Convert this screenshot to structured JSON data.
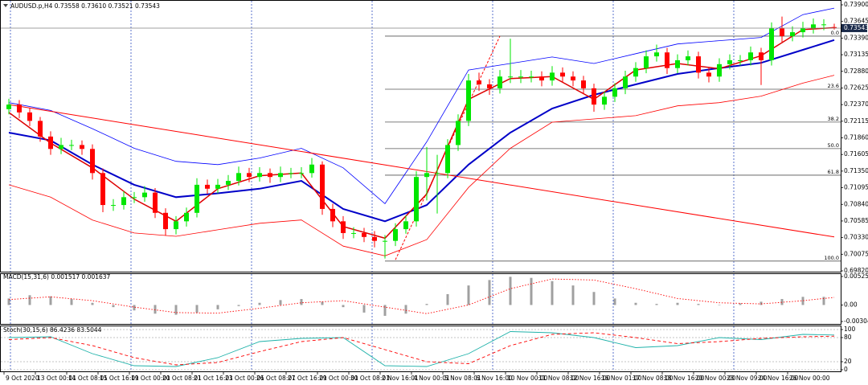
{
  "chart_data": [
    {
      "type": "candlestick",
      "title": "AUDUSD.p,H4  0.73558 0.73610 0.73521 0.73543",
      "up_color": "#00e600",
      "down_color": "#ff0000",
      "open": [
        0.723,
        0.7237,
        0.7225,
        0.7212,
        0.7188,
        0.7169,
        0.7175,
        0.7175,
        0.7169,
        0.7132,
        0.7083,
        0.7083,
        0.7095,
        0.7095,
        0.7102,
        0.7071,
        0.7046,
        0.7058,
        0.7071,
        0.7114,
        0.7108,
        0.7114,
        0.712,
        0.7132,
        0.7126,
        0.7132,
        0.7126,
        0.7132,
        0.7132,
        0.7132,
        0.7145,
        0.7077,
        0.7058,
        0.704,
        0.704,
        0.7034,
        0.7028,
        0.7028,
        0.7046,
        0.7058,
        0.7126,
        0.7132,
        0.7132,
        0.7175,
        0.7212,
        0.7274,
        0.7268,
        0.7262,
        0.728,
        0.728,
        0.728,
        0.728,
        0.7274,
        0.7286,
        0.728,
        0.7274,
        0.7262,
        0.7237,
        0.7249,
        0.7262,
        0.728,
        0.7293,
        0.7311,
        0.7317,
        0.7293,
        0.7305,
        0.7311,
        0.7286,
        0.728,
        0.7299,
        0.7305,
        0.7305,
        0.7317,
        0.7305,
        0.7354,
        0.7342,
        0.7348,
        0.7354,
        0.736,
        0.73558
      ],
      "high": [
        0.7246,
        0.7244,
        0.7232,
        0.7218,
        0.7196,
        0.7186,
        0.7183,
        0.7182,
        0.7176,
        0.7139,
        0.7092,
        0.7104,
        0.7103,
        0.7112,
        0.7109,
        0.7078,
        0.7066,
        0.7079,
        0.7124,
        0.7122,
        0.7123,
        0.7129,
        0.7142,
        0.714,
        0.7141,
        0.7139,
        0.7142,
        0.714,
        0.7141,
        0.7155,
        0.715,
        0.7085,
        0.7066,
        0.7049,
        0.7048,
        0.7043,
        0.7037,
        0.7055,
        0.7067,
        0.7135,
        0.7172,
        0.716,
        0.7184,
        0.7222,
        0.7284,
        0.7286,
        0.7276,
        0.729,
        0.7338,
        0.729,
        0.7289,
        0.7288,
        0.7296,
        0.7294,
        0.7288,
        0.7281,
        0.7269,
        0.7257,
        0.727,
        0.7289,
        0.7302,
        0.732,
        0.7329,
        0.7324,
        0.7314,
        0.732,
        0.7318,
        0.7294,
        0.7308,
        0.7314,
        0.7313,
        0.7326,
        0.7324,
        0.7363,
        0.7372,
        0.7357,
        0.7364,
        0.7369,
        0.7368,
        0.7361
      ],
      "low": [
        0.7222,
        0.7216,
        0.7204,
        0.718,
        0.716,
        0.7161,
        0.7167,
        0.716,
        0.7122,
        0.7072,
        0.7074,
        0.7076,
        0.7086,
        0.7088,
        0.7063,
        0.7036,
        0.7038,
        0.705,
        0.7064,
        0.71,
        0.7101,
        0.7106,
        0.7113,
        0.7118,
        0.7119,
        0.7117,
        0.7118,
        0.7124,
        0.7124,
        0.7125,
        0.7068,
        0.7049,
        0.7031,
        0.7032,
        0.7026,
        0.7018,
        0.7001,
        0.702,
        0.7039,
        0.705,
        0.709,
        0.707,
        0.7124,
        0.7166,
        0.7204,
        0.7258,
        0.7252,
        0.7254,
        0.727,
        0.727,
        0.7271,
        0.7265,
        0.7266,
        0.7271,
        0.7265,
        0.7253,
        0.7226,
        0.7229,
        0.7241,
        0.7253,
        0.7272,
        0.7285,
        0.7303,
        0.7284,
        0.7285,
        0.7297,
        0.7277,
        0.7271,
        0.7272,
        0.7291,
        0.7297,
        0.7297,
        0.7267,
        0.7297,
        0.7333,
        0.7334,
        0.734,
        0.7346,
        0.7351,
        0.73521
      ],
      "close": [
        0.7237,
        0.7225,
        0.7212,
        0.7188,
        0.7169,
        0.7175,
        0.7175,
        0.7169,
        0.7132,
        0.7083,
        0.7083,
        0.7095,
        0.7095,
        0.7102,
        0.7071,
        0.7046,
        0.7058,
        0.7071,
        0.7114,
        0.7108,
        0.7114,
        0.712,
        0.7132,
        0.7126,
        0.7132,
        0.7126,
        0.7132,
        0.7132,
        0.7132,
        0.7145,
        0.7077,
        0.7058,
        0.704,
        0.704,
        0.7034,
        0.7028,
        0.7028,
        0.7046,
        0.7058,
        0.7126,
        0.7132,
        0.7132,
        0.7175,
        0.7212,
        0.7274,
        0.7268,
        0.7262,
        0.728,
        0.728,
        0.728,
        0.728,
        0.7274,
        0.7286,
        0.728,
        0.7274,
        0.7262,
        0.7237,
        0.7249,
        0.7262,
        0.728,
        0.7293,
        0.7311,
        0.7317,
        0.7293,
        0.7305,
        0.7311,
        0.7286,
        0.728,
        0.7299,
        0.7305,
        0.7305,
        0.7317,
        0.7305,
        0.7354,
        0.7342,
        0.7348,
        0.7354,
        0.736,
        0.736,
        0.73543
      ],
      "ylim": [
        0.6982,
        0.739
      ],
      "yticks": [
        {
          "value": 0.739,
          "label": "0.73900"
        },
        {
          "value": 0.73645,
          "label": "0.73645"
        },
        {
          "value": 0.7339,
          "label": "0.73390"
        },
        {
          "value": 0.73135,
          "label": "0.73135"
        },
        {
          "value": 0.7288,
          "label": "0.72880"
        },
        {
          "value": 0.72625,
          "label": "0.72625"
        },
        {
          "value": 0.7237,
          "label": "0.72370"
        },
        {
          "value": 0.72115,
          "label": "0.72115"
        },
        {
          "value": 0.7186,
          "label": "0.71860"
        },
        {
          "value": 0.71605,
          "label": "0.71605"
        },
        {
          "value": 0.7135,
          "label": "0.71350"
        },
        {
          "value": 0.71095,
          "label": "0.71095"
        },
        {
          "value": 0.7084,
          "label": "0.70840"
        },
        {
          "value": 0.70585,
          "label": "0.70585"
        },
        {
          "value": 0.7033,
          "label": "0.70330"
        },
        {
          "value": 0.70075,
          "label": "0.70075"
        },
        {
          "value": 0.6982,
          "label": "0.69820"
        }
      ],
      "last_price": {
        "value": 0.73543,
        "label": "0.73543"
      },
      "overlay_x": [
        0,
        4,
        8,
        12,
        16,
        20,
        24,
        28,
        32,
        36,
        40,
        44,
        48,
        52,
        56,
        60,
        64,
        68,
        72,
        76,
        79
      ],
      "overlays": [
        {
          "color": "#0000ff",
          "style": "thin",
          "values": [
            0.724,
            0.7228,
            0.72,
            0.717,
            0.715,
            0.7145,
            0.7155,
            0.717,
            0.714,
            0.7085,
            0.718,
            0.729,
            0.73,
            0.731,
            0.73,
            0.7315,
            0.733,
            0.7335,
            0.734,
            0.7375,
            0.7385
          ]
        },
        {
          "color": "#ff0000",
          "style": "thin",
          "values": [
            0.7114,
            0.7095,
            0.706,
            0.704,
            0.7035,
            0.7045,
            0.7055,
            0.706,
            0.702,
            0.7005,
            0.703,
            0.711,
            0.717,
            0.721,
            0.7215,
            0.722,
            0.7235,
            0.724,
            0.725,
            0.727,
            0.7282
          ]
        },
        {
          "color": "#0000c8",
          "style": "thick",
          "values": [
            0.7194,
            0.7182,
            0.7145,
            0.7114,
            0.7095,
            0.7101,
            0.7108,
            0.712,
            0.7077,
            0.7058,
            0.7083,
            0.7145,
            0.7194,
            0.7231,
            0.7252,
            0.7268,
            0.7284,
            0.7293,
            0.7301,
            0.7321,
            0.7336
          ]
        },
        {
          "color": "#dd0000",
          "style": "medium",
          "values": [
            0.7225,
            0.7178,
            0.714,
            0.7092,
            0.7058,
            0.7108,
            0.7128,
            0.7132,
            0.705,
            0.7032,
            0.71,
            0.7245,
            0.7277,
            0.728,
            0.7245,
            0.729,
            0.73,
            0.7292,
            0.7312,
            0.7352,
            0.7355
          ]
        }
      ],
      "trendlines": [
        {
          "color": "#ff0000",
          "dashed": false,
          "x": [
            0,
            79
          ],
          "values": [
            0.7237,
            0.7034
          ]
        },
        {
          "color": "#ff0000",
          "dashed": true,
          "x": [
            37,
            47
          ],
          "values": [
            0.6999,
            0.7342
          ]
        }
      ],
      "fibonacci": {
        "start": 36,
        "high": 0.7342,
        "low": 0.6997,
        "levels": [
          {
            "value": 0,
            "label": "0.0"
          },
          23.6,
          38.2,
          {
            "value": 50,
            "label": "50.0"
          },
          61.8,
          {
            "value": 100,
            "label": "100.0"
          }
        ]
      },
      "time_labels": [
        "9 Oct 2020",
        "13 Oct 00:01",
        "14 Oct 08:01",
        "15 Oct 16:01",
        "19 Oct 00:01",
        "20 Oct 08:01",
        "21 Oct 16:01",
        "23 Oct 00:01",
        "26 Oct 08:01",
        "27 Oct 16:01",
        "29 Oct 00:01",
        "30 Oct 08:01",
        "2 Nov 16:01",
        "4 Nov 00:01",
        "5 Nov 08:01",
        "6 Nov 16:00",
        "10 Nov 00:00",
        "11 Nov 08:00",
        "12 Nov 16:00",
        "16 Nov 01:00",
        "17 Nov 08:00",
        "18 Nov 16:00",
        "20 Nov 00:00",
        "23 Nov 09:00",
        "24 Nov 16:00",
        "26 Nov 00:00"
      ]
    },
    {
      "type": "indicator",
      "title": "MACD(15,31,6) 0.001517 0.001637",
      "ylim": [
        -0.003046,
        0.005254
      ],
      "yticks": [
        0.005254,
        {
          "value": 0,
          "label": "0.00"
        },
        -0.003046
      ],
      "grid": false,
      "bars": {
        "color": "#a0a0a0",
        "x": [
          0,
          2,
          4,
          6,
          8,
          10,
          12,
          14,
          16,
          18,
          20,
          22,
          24,
          26,
          28,
          30,
          32,
          34,
          36,
          38,
          40,
          42,
          44,
          46,
          48,
          50,
          52,
          54,
          56,
          58,
          60,
          62,
          64,
          66,
          68,
          70,
          72,
          74,
          76,
          78
        ],
        "values": [
          0.0012,
          0.0018,
          0.0016,
          0.0011,
          0.0004,
          -0.0004,
          -0.001,
          -0.0016,
          -0.0018,
          -0.0014,
          -0.0008,
          -0.0002,
          0.0004,
          0.0009,
          0.0011,
          0.0006,
          -0.0004,
          -0.0014,
          -0.002,
          -0.0016,
          0.0002,
          0.002,
          0.0036,
          0.0046,
          0.0052,
          0.005,
          0.0044,
          0.0036,
          0.0024,
          0.0012,
          0.0004,
          0.0002,
          0.0004,
          0.0002,
          0.0,
          0.0003,
          0.0006,
          0.0011,
          0.0015,
          0.0015
        ]
      },
      "lines": [
        {
          "color": "#ff0000",
          "style": "dotted",
          "x": [
            0,
            4,
            8,
            12,
            16,
            20,
            24,
            28,
            32,
            36,
            40,
            44,
            48,
            52,
            56,
            60,
            64,
            68,
            72,
            76,
            79
          ],
          "values": [
            0.001,
            0.0015,
            0.0008,
            -0.0004,
            -0.0014,
            -0.0015,
            -0.0006,
            0.0004,
            0.0008,
            -0.0004,
            -0.0016,
            0.0,
            0.003,
            0.0048,
            0.0046,
            0.003,
            0.0012,
            0.0004,
            0.0002,
            0.0008,
            0.0014
          ]
        }
      ]
    },
    {
      "type": "indicator",
      "title": "Stoch(30,15,6) 86.4236 83.5044",
      "ylim": [
        0,
        100
      ],
      "yticks": [
        100,
        80,
        20,
        0
      ],
      "grid": true,
      "lines": [
        {
          "color": "#20b2aa",
          "style": "solid",
          "x": [
            0,
            4,
            8,
            12,
            16,
            20,
            24,
            28,
            32,
            36,
            40,
            44,
            48,
            52,
            56,
            60,
            64,
            68,
            72,
            76,
            79
          ],
          "values": [
            80,
            82,
            40,
            10,
            8,
            30,
            70,
            78,
            80,
            10,
            8,
            40,
            95,
            92,
            80,
            55,
            60,
            80,
            75,
            88,
            86.4236
          ]
        },
        {
          "color": "#ff0000",
          "style": "dashed",
          "x": [
            0,
            4,
            8,
            12,
            16,
            20,
            24,
            28,
            32,
            36,
            40,
            44,
            48,
            52,
            56,
            60,
            64,
            68,
            72,
            76,
            79
          ],
          "values": [
            75,
            80,
            60,
            30,
            12,
            18,
            45,
            70,
            80,
            50,
            20,
            15,
            60,
            88,
            92,
            80,
            65,
            70,
            78,
            82,
            83.5044
          ]
        }
      ]
    }
  ]
}
